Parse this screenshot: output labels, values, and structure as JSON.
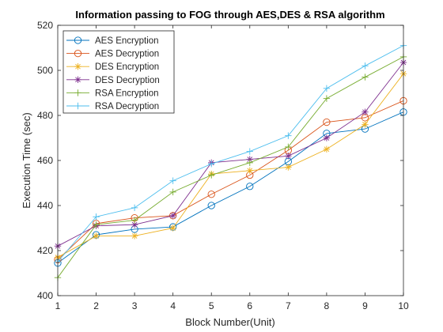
{
  "chart_data": {
    "type": "line",
    "title": "Information passing to FOG through AES,DES & RSA algorithm",
    "xlabel": "Block Number(Unit)",
    "ylabel": "Execution Time (sec)",
    "xlim": [
      1,
      10
    ],
    "ylim": [
      400,
      520
    ],
    "xticks": [
      "1",
      "2",
      "3",
      "4",
      "5",
      "6",
      "7",
      "8",
      "9",
      "10"
    ],
    "yticks": [
      "400",
      "420",
      "440",
      "460",
      "480",
      "500",
      "520"
    ],
    "grid": false,
    "legend_position": "top-left",
    "x": [
      1,
      2,
      3,
      4,
      5,
      6,
      7,
      8,
      9,
      10
    ],
    "series": [
      {
        "name": "AES Encryption",
        "marker": "circle",
        "color": "#0072BD",
        "values": [
          414.5,
          427,
          429.5,
          430.5,
          440,
          448.5,
          459.5,
          472,
          474,
          481.5
        ]
      },
      {
        "name": "AES Decryption",
        "marker": "circle",
        "color": "#D95319",
        "values": [
          416,
          432,
          434.5,
          435.5,
          445,
          453.5,
          464.5,
          477,
          479,
          486.5
        ]
      },
      {
        "name": "DES Encryption",
        "marker": "asterisk",
        "color": "#EDB120",
        "values": [
          417,
          426.5,
          426.5,
          430,
          454,
          455.5,
          457,
          465,
          476,
          498.5
        ]
      },
      {
        "name": "DES Decryption",
        "marker": "asterisk",
        "color": "#7E2F8E",
        "values": [
          422,
          431,
          431.5,
          435.5,
          459,
          460.5,
          462,
          470,
          481.5,
          503.5
        ]
      },
      {
        "name": "RSA Encryption",
        "marker": "plus",
        "color": "#77AC30",
        "values": [
          408,
          431.5,
          433.5,
          446,
          453.5,
          459,
          466,
          487.5,
          497,
          506
        ]
      },
      {
        "name": "RSA Decryption",
        "marker": "plus",
        "color": "#4DBEEE",
        "values": [
          415,
          435,
          439,
          451,
          458.5,
          464,
          471,
          492,
          502,
          511
        ]
      }
    ]
  }
}
